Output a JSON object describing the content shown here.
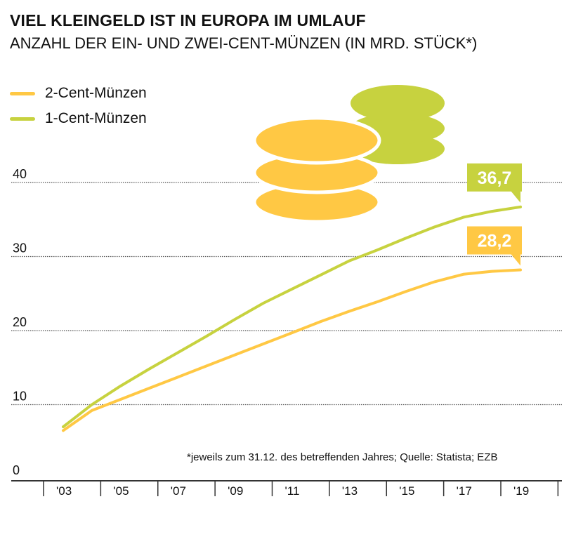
{
  "colors": {
    "two_cent": "#ffc844",
    "one_cent": "#c7d23f",
    "grid": "#555555",
    "axis": "#333333",
    "coin_two_cent": "#ffc844",
    "coin_one_cent": "#c7d23f",
    "label_text": "#ffffff"
  },
  "legend": {
    "two_cent_label": "2-Cent-Münzen",
    "one_cent_label": "1-Cent-Münzen"
  },
  "footnote": "*jeweils zum 31.12. des betreffenden Jahres;  Quelle: Statista; EZB",
  "chart_data": {
    "type": "line",
    "title": "VIEL KLEINGELD IST IN EUROPA IM UMLAUF",
    "subtitle": "ANZAHL DER EIN- UND ZWEI-CENT-MÜNZEN (IN MRD. STÜCK*)",
    "xlabel": "",
    "ylabel": "",
    "ylim": [
      0,
      40
    ],
    "yticks": [
      0,
      10,
      20,
      30,
      40
    ],
    "grid": true,
    "x": [
      2003,
      2004,
      2005,
      2006,
      2007,
      2008,
      2009,
      2010,
      2011,
      2012,
      2013,
      2014,
      2015,
      2016,
      2017,
      2018,
      2019
    ],
    "xtick_labels": [
      "'03",
      "'05",
      "'07",
      "'09",
      "'11",
      "'13",
      "'15",
      "'17",
      "'19"
    ],
    "xtick_years": [
      2003,
      2005,
      2007,
      2009,
      2011,
      2013,
      2015,
      2017,
      2019
    ],
    "series": [
      {
        "name": "2-Cent-Münzen",
        "key": "two_cent",
        "values": [
          6.5,
          9.2,
          10.7,
          12.2,
          13.7,
          15.2,
          16.7,
          18.2,
          19.7,
          21.2,
          22.6,
          23.9,
          25.3,
          26.6,
          27.6,
          28.0,
          28.2
        ],
        "end_label": "28,2"
      },
      {
        "name": "1-Cent-Münzen",
        "key": "one_cent",
        "values": [
          7.0,
          10.0,
          12.5,
          14.8,
          17.0,
          19.2,
          21.5,
          23.7,
          25.6,
          27.5,
          29.4,
          30.9,
          32.5,
          34.0,
          35.3,
          36.1,
          36.7
        ],
        "end_label": "36,7"
      }
    ]
  }
}
